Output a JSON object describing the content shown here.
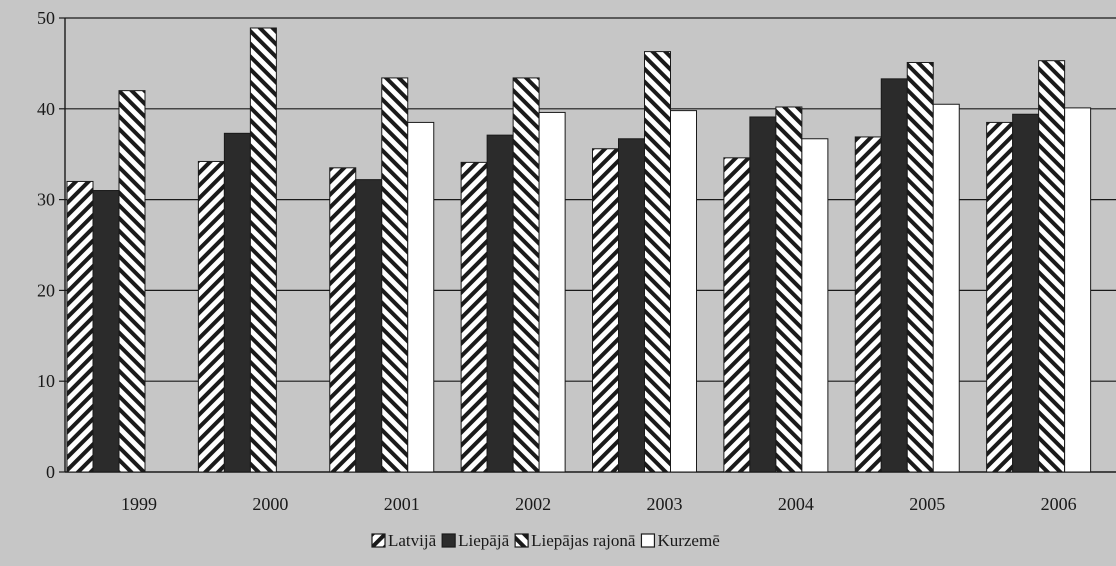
{
  "chart_data": {
    "type": "bar",
    "title": "",
    "xlabel": "",
    "ylabel": "",
    "ylim": [
      0,
      50
    ],
    "yticks": [
      0,
      10,
      20,
      30,
      40,
      50
    ],
    "grid": "horizontal",
    "legend_position": "bottom-center",
    "categories": [
      "1999",
      "2000",
      "2001",
      "2002",
      "2003",
      "2004",
      "2005",
      "2006"
    ],
    "series": [
      {
        "name": "Latvijā",
        "pattern": "hatch-forward",
        "values": [
          32.0,
          34.2,
          33.5,
          34.1,
          35.6,
          34.6,
          36.9,
          38.5
        ]
      },
      {
        "name": "Liepājā",
        "pattern": "solid-dark",
        "values": [
          31.0,
          37.3,
          32.2,
          37.1,
          36.7,
          39.1,
          43.3,
          39.4
        ]
      },
      {
        "name": "Liepājas rajonā",
        "pattern": "hatch-back",
        "values": [
          42.0,
          48.9,
          43.4,
          43.4,
          46.3,
          40.2,
          45.1,
          45.3
        ]
      },
      {
        "name": "Kurzemē",
        "pattern": "empty",
        "values": [
          null,
          null,
          38.5,
          39.6,
          39.8,
          36.7,
          40.5,
          40.1
        ]
      }
    ],
    "colors": {
      "background": "#c6c6c6",
      "bar_fill": "#ffffff",
      "dark_bar": "#2b2b2b",
      "stroke": "#1a1a1a",
      "grid": "#1a1a1a"
    }
  }
}
